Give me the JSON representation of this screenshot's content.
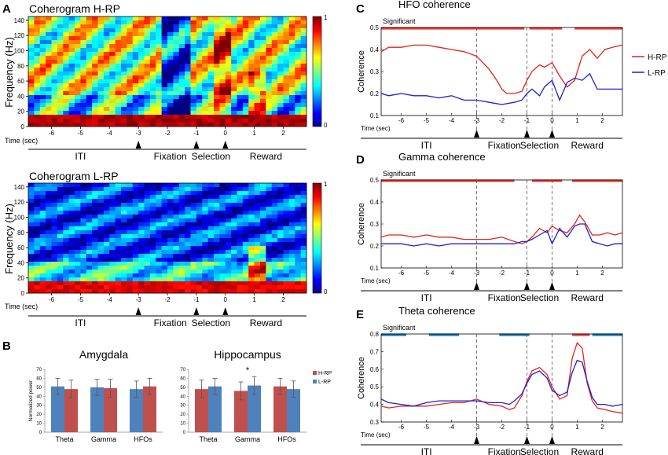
{
  "panel_labels": {
    "A": "A",
    "B": "B",
    "C": "C",
    "D": "D",
    "E": "E"
  },
  "colors": {
    "hrp": "#e2231a",
    "lrp": "#1f1fd6",
    "bar_hrp": "#c0504d",
    "bar_lrp": "#4f81bd",
    "sig_red": "#ee4040",
    "sig_blue": "#1a7abf",
    "err": "#555555"
  },
  "coherograms": [
    {
      "id": "hrp",
      "title": "Coherogram H-RP",
      "ylabel": "Frequency (Hz)",
      "yticks": [
        "0",
        "20",
        "40",
        "60",
        "80",
        "100",
        "120",
        "140"
      ],
      "xticks": [
        "-6",
        "-5",
        "-4",
        "-3",
        "-2",
        "-1",
        "0",
        "1",
        "2"
      ],
      "xlabel": "Time (sec)",
      "colorbar_ticks": [
        "1",
        "0"
      ]
    },
    {
      "id": "lrp",
      "title": "Coherogram L-RP",
      "ylabel": "Frequency (Hz)",
      "yticks": [
        "0",
        "20",
        "40",
        "60",
        "80",
        "100",
        "120",
        "140"
      ],
      "xticks": [
        "-6",
        "-5",
        "-4",
        "-3",
        "-2",
        "-1",
        "0",
        "1",
        "2"
      ],
      "xlabel": "Time (sec)",
      "colorbar_ticks": [
        "1",
        "0"
      ]
    }
  ],
  "epochs": [
    "ITI",
    "Fixation",
    "Selection",
    "Reward"
  ],
  "chart_data": [
    {
      "type": "heatmap",
      "title": "Coherogram H-RP",
      "xlabel": "Time (sec)",
      "ylabel": "Frequency (Hz)",
      "xlim": [
        -6.8,
        2.8
      ],
      "ylim": [
        0,
        145
      ],
      "clim": [
        0,
        1
      ]
    },
    {
      "type": "heatmap",
      "title": "Coherogram L-RP",
      "xlabel": "Time (sec)",
      "ylabel": "Frequency (Hz)",
      "xlim": [
        -6.8,
        2.8
      ],
      "ylim": [
        0,
        145
      ],
      "clim": [
        0,
        1
      ]
    },
    {
      "type": "bar",
      "title": "Amygdala",
      "ylabel": "Normalized power",
      "ylim": [
        0,
        70
      ],
      "yticks": [
        "0",
        "10",
        "20",
        "30",
        "40",
        "50",
        "60",
        "70"
      ],
      "categories": [
        "Theta",
        "Gamma",
        "HFOs"
      ],
      "series": [
        {
          "name": "L-RP",
          "values": [
            51,
            50,
            48
          ],
          "errors": [
            9,
            9,
            9
          ]
        },
        {
          "name": "H-RP",
          "values": [
            48,
            49,
            51
          ],
          "errors": [
            10,
            10,
            9
          ]
        }
      ]
    },
    {
      "type": "bar",
      "title": "Hippocampus",
      "ylabel": "Normalized power",
      "ylim": [
        0,
        70
      ],
      "yticks": [
        "0",
        "10",
        "20",
        "30",
        "40",
        "50",
        "60",
        "70"
      ],
      "categories": [
        "Theta",
        "Gamma",
        "HFOs"
      ],
      "series": [
        {
          "name": "H-RP",
          "values": [
            48,
            46,
            51
          ],
          "errors": [
            10,
            10,
            9
          ]
        },
        {
          "name": "L-RP",
          "values": [
            51,
            52,
            48
          ],
          "errors": [
            9,
            10,
            9
          ]
        }
      ],
      "annotation": "*",
      "legend": [
        "H-RP",
        "L-RP"
      ]
    },
    {
      "type": "line",
      "title": "HFO coherence",
      "ylabel": "Coherence",
      "xlabel": "Time (sec)",
      "xlim": [
        -6.8,
        2.8
      ],
      "ylim": [
        0.1,
        0.5
      ],
      "yticks": [
        "0.1",
        "0.2",
        "0.3",
        "0.4",
        "0.5"
      ],
      "xticks": [
        "-6",
        "-5",
        "-4",
        "-3",
        "-2",
        "-1",
        "0",
        "1",
        "2"
      ],
      "significance_label": "Significant",
      "significant": [
        {
          "from": -6.8,
          "to": -1.1,
          "color": "red"
        },
        {
          "from": -0.9,
          "to": 0.4,
          "color": "red"
        },
        {
          "from": 0.9,
          "to": 2.8,
          "color": "red"
        }
      ],
      "legend": [
        "H-RP",
        "L-RP"
      ],
      "series": [
        {
          "name": "H-RP",
          "x": [
            -6.8,
            -6.5,
            -6,
            -5.5,
            -5,
            -4.5,
            -4,
            -3.5,
            -3,
            -2.5,
            -2.2,
            -2,
            -1.8,
            -1.5,
            -1.2,
            -1,
            -0.8,
            -0.5,
            -0.3,
            0,
            0.3,
            0.6,
            0.9,
            1.2,
            1.5,
            1.8,
            2.1,
            2.4,
            2.8
          ],
          "y": [
            0.39,
            0.41,
            0.41,
            0.42,
            0.42,
            0.41,
            0.4,
            0.39,
            0.37,
            0.31,
            0.26,
            0.22,
            0.2,
            0.2,
            0.21,
            0.26,
            0.3,
            0.33,
            0.32,
            0.34,
            0.28,
            0.23,
            0.26,
            0.37,
            0.4,
            0.36,
            0.4,
            0.41,
            0.42
          ]
        },
        {
          "name": "L-RP",
          "x": [
            -6.8,
            -6.5,
            -6,
            -5.5,
            -5,
            -4.5,
            -4,
            -3.5,
            -3,
            -2.5,
            -2,
            -1.5,
            -1.2,
            -1,
            -0.8,
            -0.5,
            -0.3,
            0,
            0.3,
            0.6,
            0.9,
            1.2,
            1.5,
            1.8,
            2.1,
            2.4,
            2.8
          ],
          "y": [
            0.2,
            0.19,
            0.2,
            0.19,
            0.19,
            0.18,
            0.19,
            0.17,
            0.17,
            0.16,
            0.15,
            0.16,
            0.17,
            0.2,
            0.22,
            0.19,
            0.23,
            0.26,
            0.17,
            0.25,
            0.27,
            0.26,
            0.29,
            0.22,
            0.22,
            0.22,
            0.22
          ]
        }
      ]
    },
    {
      "type": "line",
      "title": "Gamma coherence",
      "ylabel": "Coherence",
      "xlabel": "Time (sec)",
      "xlim": [
        -6.8,
        2.8
      ],
      "ylim": [
        0.1,
        0.5
      ],
      "yticks": [
        "0.1",
        "0.2",
        "0.3",
        "0.4",
        "0.5"
      ],
      "xticks": [
        "-6",
        "-5",
        "-4",
        "-3",
        "-2",
        "-1",
        "0",
        "1",
        "2"
      ],
      "significance_label": "Significant",
      "significant": [
        {
          "from": -6.8,
          "to": -1.5,
          "color": "red"
        },
        {
          "from": -0.8,
          "to": 0.4,
          "color": "red"
        },
        {
          "from": 0.8,
          "to": 2.8,
          "color": "red"
        }
      ],
      "series": [
        {
          "name": "H-RP",
          "x": [
            -6.8,
            -6.5,
            -6,
            -5.5,
            -5,
            -4.5,
            -4,
            -3.5,
            -3,
            -2.5,
            -2,
            -1.5,
            -1.2,
            -1,
            -0.8,
            -0.5,
            -0.2,
            0,
            0.3,
            0.6,
            0.9,
            1.1,
            1.3,
            1.6,
            1.9,
            2.2,
            2.5,
            2.8
          ],
          "y": [
            0.24,
            0.25,
            0.25,
            0.24,
            0.25,
            0.24,
            0.24,
            0.23,
            0.23,
            0.23,
            0.24,
            0.22,
            0.21,
            0.22,
            0.24,
            0.28,
            0.26,
            0.29,
            0.27,
            0.26,
            0.3,
            0.34,
            0.31,
            0.25,
            0.25,
            0.26,
            0.25,
            0.26
          ]
        },
        {
          "name": "L-RP",
          "x": [
            -6.8,
            -6.5,
            -6,
            -5.5,
            -5,
            -4.5,
            -4,
            -3.5,
            -3,
            -2.5,
            -2,
            -1.5,
            -1.2,
            -1,
            -0.8,
            -0.5,
            -0.2,
            0,
            0.3,
            0.6,
            0.9,
            1.1,
            1.3,
            1.6,
            1.9,
            2.2,
            2.5,
            2.8
          ],
          "y": [
            0.21,
            0.21,
            0.21,
            0.2,
            0.21,
            0.2,
            0.21,
            0.21,
            0.21,
            0.21,
            0.21,
            0.21,
            0.22,
            0.22,
            0.23,
            0.25,
            0.27,
            0.21,
            0.28,
            0.24,
            0.29,
            0.3,
            0.3,
            0.22,
            0.21,
            0.2,
            0.21,
            0.21
          ]
        }
      ]
    },
    {
      "type": "line",
      "title": "Theta coherence",
      "ylabel": "Coherence",
      "xlabel": "Time (sec)",
      "xlim": [
        -6.8,
        2.8
      ],
      "ylim": [
        0.3,
        0.8
      ],
      "yticks": [
        "0.3",
        "0.4",
        "0.5",
        "0.6",
        "0.7",
        "0.8"
      ],
      "xticks": [
        "-6",
        "-5",
        "-4",
        "-3",
        "-2",
        "-1",
        "0",
        "1",
        "2"
      ],
      "significance_label": "Significant",
      "significant": [
        {
          "from": -6.8,
          "to": -5.8,
          "color": "blue"
        },
        {
          "from": -4.9,
          "to": -3.7,
          "color": "blue"
        },
        {
          "from": -2.1,
          "to": -0.9,
          "color": "blue"
        },
        {
          "from": 0.8,
          "to": 1.5,
          "color": "red"
        },
        {
          "from": 1.6,
          "to": 2.8,
          "color": "blue"
        }
      ],
      "series": [
        {
          "name": "H-RP",
          "x": [
            -6.8,
            -6.5,
            -6,
            -5.5,
            -5,
            -4.5,
            -4,
            -3.5,
            -3,
            -2.5,
            -2,
            -1.7,
            -1.5,
            -1.2,
            -1,
            -0.8,
            -0.5,
            -0.2,
            0,
            0.3,
            0.6,
            0.8,
            1,
            1.2,
            1.4,
            1.6,
            1.8,
            2.1,
            2.4,
            2.8
          ],
          "y": [
            0.39,
            0.38,
            0.39,
            0.39,
            0.39,
            0.4,
            0.41,
            0.41,
            0.43,
            0.4,
            0.39,
            0.37,
            0.38,
            0.45,
            0.53,
            0.59,
            0.61,
            0.57,
            0.5,
            0.43,
            0.45,
            0.66,
            0.75,
            0.72,
            0.52,
            0.42,
            0.38,
            0.37,
            0.36,
            0.35
          ]
        },
        {
          "name": "L-RP",
          "x": [
            -6.8,
            -6.5,
            -6,
            -5.5,
            -5,
            -4.5,
            -4,
            -3.5,
            -3,
            -2.5,
            -2,
            -1.7,
            -1.5,
            -1.2,
            -1,
            -0.8,
            -0.5,
            -0.2,
            0,
            0.3,
            0.6,
            0.8,
            1,
            1.2,
            1.4,
            1.6,
            1.8,
            2.1,
            2.4,
            2.8
          ],
          "y": [
            0.43,
            0.41,
            0.4,
            0.39,
            0.41,
            0.42,
            0.42,
            0.42,
            0.42,
            0.41,
            0.41,
            0.4,
            0.42,
            0.46,
            0.52,
            0.57,
            0.59,
            0.55,
            0.48,
            0.45,
            0.47,
            0.58,
            0.65,
            0.64,
            0.53,
            0.44,
            0.4,
            0.4,
            0.39,
            0.4
          ]
        }
      ]
    }
  ]
}
